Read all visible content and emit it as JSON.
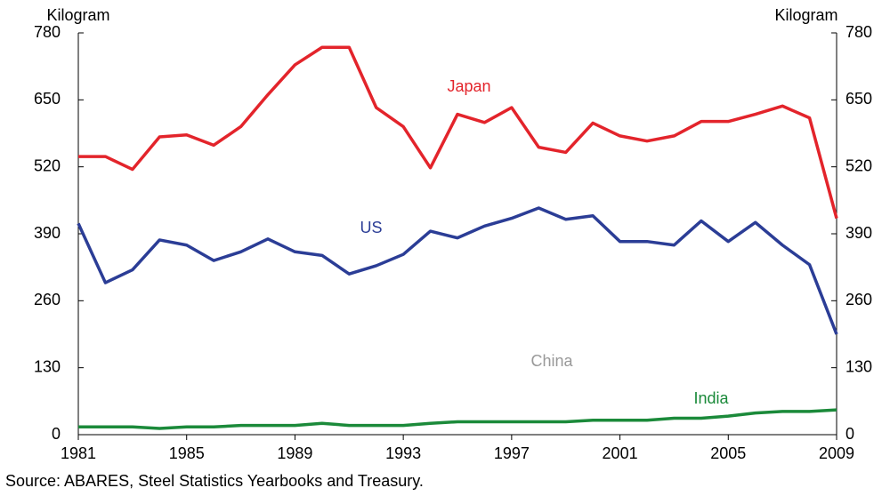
{
  "chart_data": {
    "type": "line",
    "y_label": "Kilogram",
    "y2_label": "Kilogram",
    "source": "Source: ABARES, Steel Statistics Yearbooks and Treasury.",
    "annotations": [
      "China"
    ],
    "x": [
      1981,
      1982,
      1983,
      1984,
      1985,
      1986,
      1987,
      1988,
      1989,
      1990,
      1991,
      1992,
      1993,
      1994,
      1995,
      1996,
      1997,
      1998,
      1999,
      2000,
      2001,
      2002,
      2003,
      2004,
      2005,
      2006,
      2007,
      2008,
      2009
    ],
    "series": [
      {
        "name": "Japan",
        "color": "#e3242b",
        "values": [
          540,
          540,
          515,
          578,
          582,
          562,
          598,
          660,
          718,
          752,
          752,
          635,
          598,
          518,
          622,
          606,
          635,
          558,
          548,
          605,
          580,
          570,
          580,
          608,
          608,
          622,
          638,
          615,
          420
        ]
      },
      {
        "name": "US",
        "color": "#2b3d96",
        "values": [
          410,
          295,
          320,
          378,
          368,
          338,
          355,
          380,
          355,
          348,
          312,
          328,
          350,
          395,
          382,
          405,
          420,
          440,
          418,
          425,
          375,
          375,
          368,
          415,
          375,
          412,
          368,
          330,
          195
        ]
      },
      {
        "name": "India",
        "color": "#1b8a3a",
        "values": [
          15,
          15,
          15,
          12,
          15,
          15,
          18,
          18,
          18,
          22,
          18,
          18,
          18,
          22,
          25,
          25,
          25,
          25,
          25,
          28,
          28,
          28,
          32,
          32,
          36,
          42,
          45,
          45,
          48
        ]
      }
    ],
    "xlim": [
      1981,
      2009
    ],
    "xticks": [
      1981,
      1985,
      1989,
      1993,
      1997,
      2001,
      2005,
      2009
    ],
    "ylim": [
      0,
      780
    ],
    "yticks": [
      0,
      130,
      260,
      390,
      520,
      650,
      780
    ],
    "y2lim": [
      0,
      780
    ],
    "y2ticks": [
      0,
      130,
      260,
      390,
      520,
      650,
      780
    ]
  }
}
